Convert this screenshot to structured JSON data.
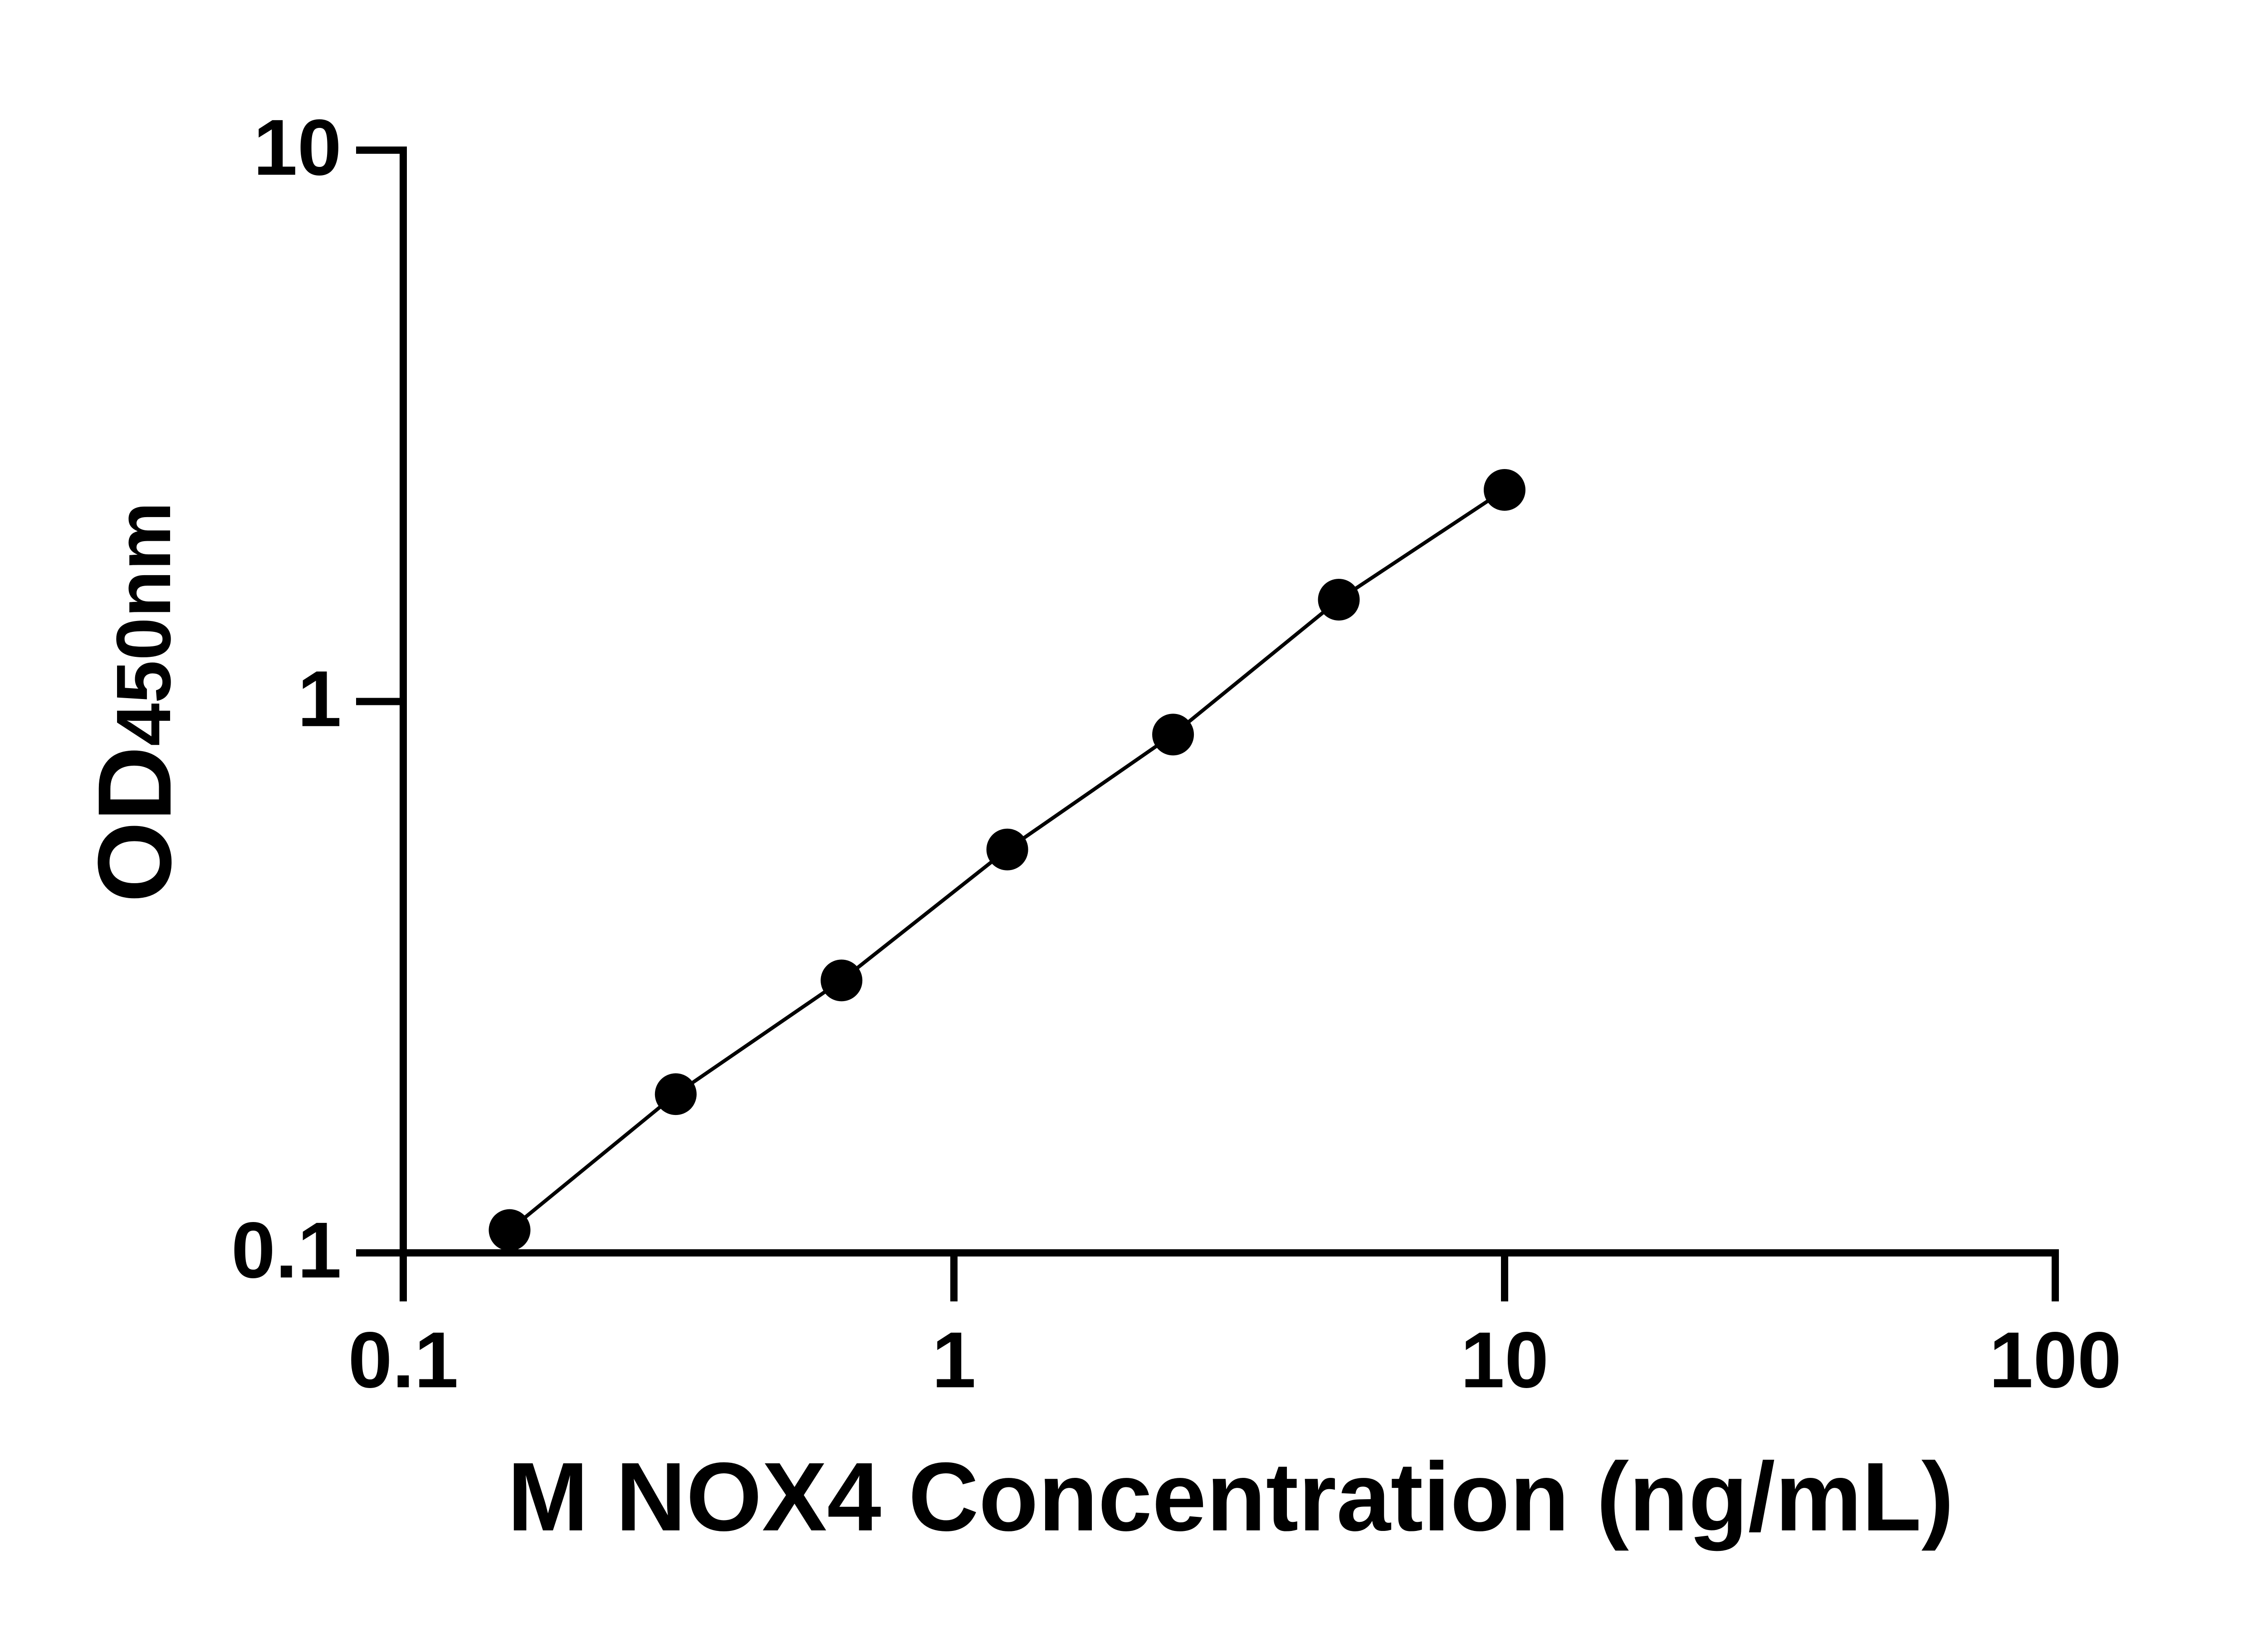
{
  "chart_data": {
    "type": "scatter",
    "connect": true,
    "xlabel": "M NOX4 Concentration (ng/mL)",
    "ylabel": "OD",
    "ylabel_subscript": "450nm",
    "x": [
      0.156,
      0.3125,
      0.625,
      1.25,
      2.5,
      5,
      10
    ],
    "values": [
      0.11,
      0.194,
      0.312,
      0.539,
      0.871,
      1.53,
      2.42
    ],
    "color": "#000000",
    "xscale": "log",
    "yscale": "log",
    "xlim": [
      0.1,
      100
    ],
    "ylim": [
      0.1,
      10
    ],
    "xticks": [
      0.1,
      1,
      10,
      100
    ],
    "yticks": [
      0.1,
      1,
      10
    ],
    "grid": false
  }
}
